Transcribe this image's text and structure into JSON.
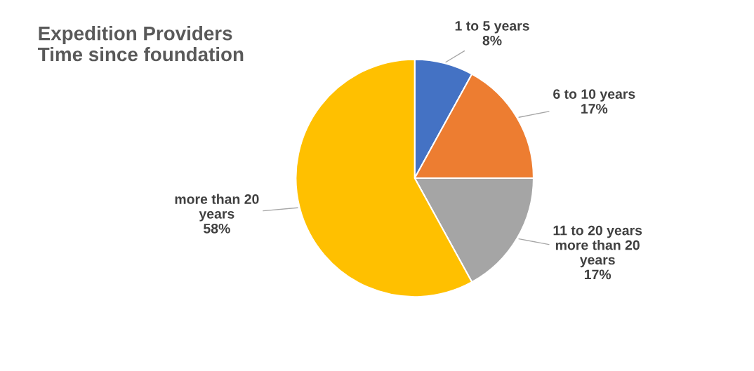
{
  "chart_data": {
    "type": "pie",
    "title": "Expedition Providers\nTime since foundation",
    "categories": [
      "1 to 5 years",
      "6 to 10 years",
      "11 to 20 years\nmore than 20\nyears",
      "more than 20\nyears"
    ],
    "values": [
      8,
      17,
      17,
      58
    ],
    "value_labels": [
      "8%",
      "17%",
      "17%",
      "58%"
    ],
    "colors": [
      "#4472c4",
      "#ed7d31",
      "#a5a5a5",
      "#ffc000"
    ],
    "legend": false
  }
}
